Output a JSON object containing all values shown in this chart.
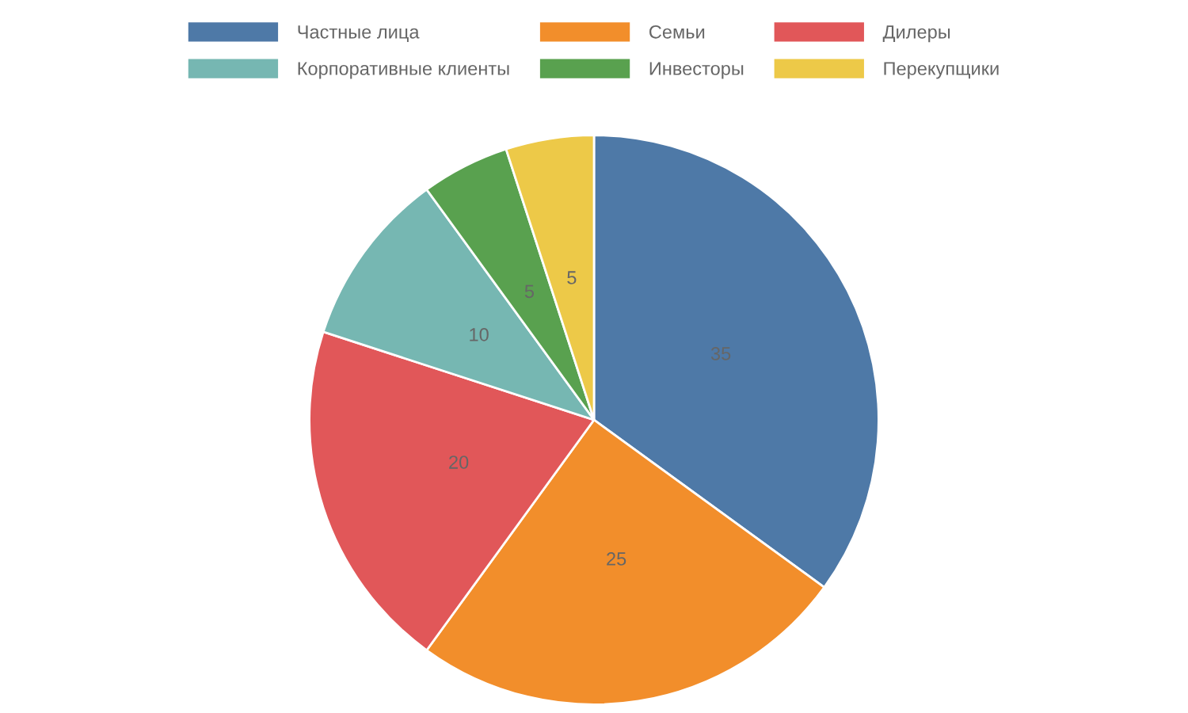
{
  "chart_data": {
    "type": "pie",
    "categories": [
      "Частные лица",
      "Семьи",
      "Дилеры",
      "Корпоративные клиенты",
      "Инвесторы",
      "Перекупщики"
    ],
    "values": [
      35,
      25,
      20,
      10,
      5,
      5
    ],
    "colors": [
      "#4e79a7",
      "#f28e2b",
      "#e15759",
      "#76b7b2",
      "#59a14f",
      "#edc948"
    ],
    "data_labels": true,
    "legend": "top"
  }
}
